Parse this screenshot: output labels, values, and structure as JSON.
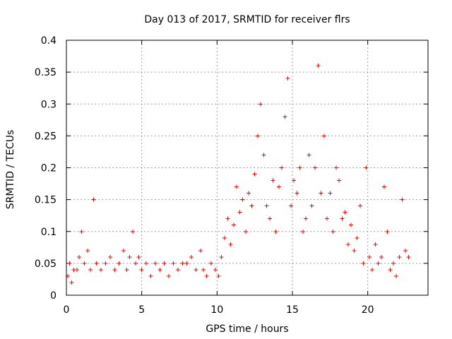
{
  "chart_data": {
    "type": "scatter",
    "title": "Day 013 of 2017, SRMTID for receiver flrs",
    "xlabel": "GPS time / hours",
    "ylabel": "SRMTID / TECUs",
    "xlim": [
      0,
      24
    ],
    "ylim": [
      0,
      0.4
    ],
    "xticks": [
      0,
      5,
      10,
      15,
      20
    ],
    "xtick_labels": [
      "0",
      "5",
      "10",
      "15",
      "20"
    ],
    "yticks": [
      0,
      0.05,
      0.1,
      0.15,
      0.2,
      0.25,
      0.3,
      0.35,
      0.4
    ],
    "ytick_labels": [
      "0",
      "0.05",
      "0.1",
      "0.15",
      "0.2",
      "0.25",
      "0.3",
      "0.35",
      "0.4"
    ],
    "grid": true,
    "legend": "none",
    "marker": "plus",
    "color": "#ff0000",
    "series": [
      {
        "x": [
          0.1,
          0.2,
          0.35,
          0.5,
          0.7,
          0.85,
          1.0,
          1.2,
          1.4,
          1.6,
          1.8,
          2.0,
          2.3,
          2.6,
          2.9,
          3.2,
          3.5,
          3.8,
          4.0,
          4.2,
          4.4,
          4.6,
          4.8,
          5.0,
          5.3,
          5.6,
          5.9,
          6.2,
          6.5,
          6.8,
          7.1,
          7.4,
          7.7,
          8.0,
          8.3,
          8.6,
          8.9,
          9.1,
          9.3,
          9.6,
          9.9,
          10.1,
          10.3,
          10.5,
          10.7,
          10.9,
          11.1,
          11.3,
          11.5,
          11.7,
          11.9,
          12.1,
          12.3,
          12.5,
          12.7,
          12.9,
          13.1,
          13.3,
          13.5,
          13.7,
          13.9,
          14.1,
          14.3,
          14.5,
          14.7,
          14.9,
          15.1,
          15.3,
          15.5,
          15.7,
          15.9,
          16.1,
          16.3,
          16.5,
          16.7,
          16.9,
          17.1,
          17.3,
          17.5,
          17.7,
          17.9,
          18.1,
          18.3,
          18.5,
          18.7,
          18.9,
          19.1,
          19.3,
          19.5,
          19.7,
          19.9,
          20.1,
          20.3,
          20.5,
          20.7,
          20.9,
          21.1,
          21.3,
          21.5,
          21.7,
          21.9,
          22.1,
          22.3,
          22.5,
          22.7
        ],
        "y": [
          0.03,
          0.05,
          0.02,
          0.04,
          0.04,
          0.06,
          0.1,
          0.05,
          0.07,
          0.04,
          0.15,
          0.05,
          0.04,
          0.05,
          0.06,
          0.04,
          0.05,
          0.07,
          0.04,
          0.06,
          0.1,
          0.05,
          0.06,
          0.04,
          0.05,
          0.03,
          0.05,
          0.04,
          0.05,
          0.03,
          0.05,
          0.04,
          0.05,
          0.05,
          0.06,
          0.04,
          0.07,
          0.04,
          0.03,
          0.05,
          0.04,
          0.03,
          0.06,
          0.09,
          0.12,
          0.08,
          0.11,
          0.17,
          0.13,
          0.15,
          0.1,
          0.16,
          0.14,
          0.19,
          0.25,
          0.3,
          0.22,
          0.14,
          0.12,
          0.18,
          0.1,
          0.17,
          0.2,
          0.28,
          0.34,
          0.14,
          0.18,
          0.16,
          0.2,
          0.1,
          0.12,
          0.22,
          0.14,
          0.2,
          0.36,
          0.16,
          0.25,
          0.12,
          0.16,
          0.1,
          0.2,
          0.18,
          0.12,
          0.13,
          0.08,
          0.11,
          0.07,
          0.09,
          0.14,
          0.05,
          0.2,
          0.06,
          0.04,
          0.08,
          0.05,
          0.06,
          0.17,
          0.1,
          0.04,
          0.05,
          0.03,
          0.06,
          0.15,
          0.07,
          0.06
        ]
      }
    ]
  }
}
